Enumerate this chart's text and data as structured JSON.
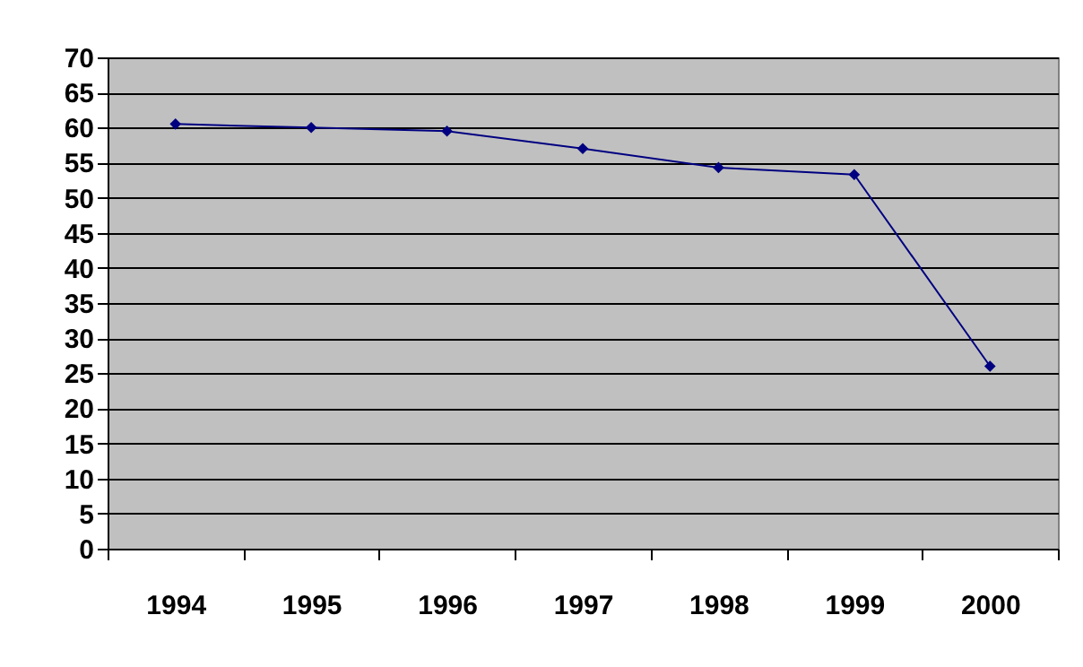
{
  "chart_data": {
    "type": "line",
    "categories": [
      "1994",
      "1995",
      "1996",
      "1997",
      "1998",
      "1999",
      "2000"
    ],
    "series": [
      {
        "color": "#000080",
        "values": [
          60.5,
          60,
          59.5,
          57,
          54.3,
          53.3,
          26
        ]
      }
    ],
    "ylim": [
      0,
      70
    ],
    "yticks": [
      0,
      5,
      10,
      15,
      20,
      25,
      30,
      35,
      40,
      45,
      50,
      55,
      60,
      65,
      70
    ],
    "grid": "y",
    "legend": false,
    "marker": "diamond",
    "line_style": "solid"
  }
}
